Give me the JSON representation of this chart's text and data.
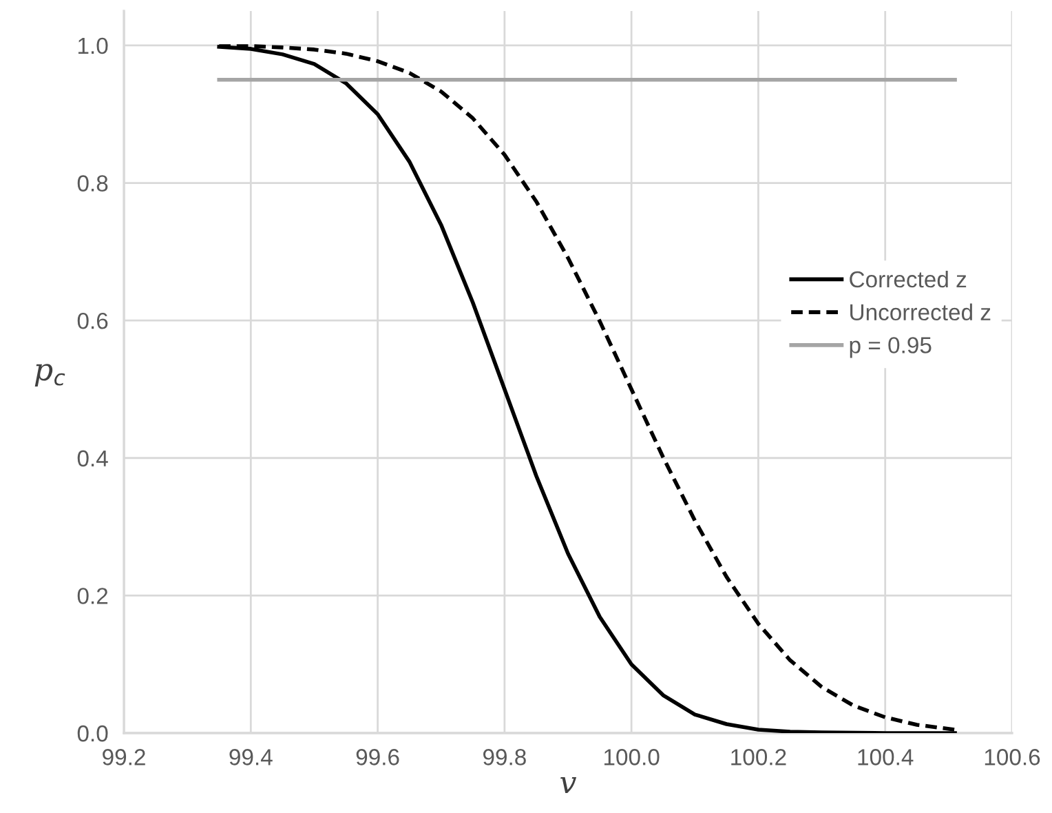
{
  "chart_data": {
    "type": "line",
    "xlabel": "v",
    "ylabel": "p$_{c}$",
    "xlim": [
      99.2,
      100.6
    ],
    "xticks": [
      {
        "value": 99.2,
        "label": "99.2"
      },
      {
        "value": 99.4,
        "label": "99.4"
      },
      {
        "value": 99.6,
        "label": "99.6"
      },
      {
        "value": 99.8,
        "label": "99.8"
      },
      {
        "value": 100.0,
        "label": "100.0"
      },
      {
        "value": 100.2,
        "label": "100.2"
      },
      {
        "value": 100.4,
        "label": "100.4"
      },
      {
        "value": 100.6,
        "label": "100.6"
      }
    ],
    "ylim": [
      0,
      1.05
    ],
    "yticks": [
      {
        "value": 0,
        "label": "0.0"
      },
      {
        "value": 0.2,
        "label": "0.2"
      },
      {
        "value": 0.4,
        "label": "0.4"
      },
      {
        "value": 0.6,
        "label": "0.6"
      },
      {
        "value": 0.8,
        "label": "0.8"
      },
      {
        "value": 1.0,
        "label": "1.0"
      }
    ],
    "grid": true,
    "legend": "right",
    "marker": "none",
    "series": [
      {
        "name": "Corrected z",
        "color": "#000000",
        "line_style": "solid",
        "x": [
          99.35,
          99.4,
          99.45,
          99.5,
          99.55,
          99.6,
          99.65,
          99.7,
          99.75,
          99.8,
          99.85,
          99.9,
          99.95,
          100.0,
          100.05,
          100.1,
          100.15,
          100.2,
          100.25,
          100.3,
          100.4,
          100.51
        ],
        "values": [
          0.998,
          0.995,
          0.987,
          0.973,
          0.945,
          0.9,
          0.831,
          0.739,
          0.626,
          0.5,
          0.374,
          0.261,
          0.169,
          0.1,
          0.055,
          0.027,
          0.013,
          0.005,
          0.002,
          0.001,
          0.0,
          0.0
        ]
      },
      {
        "name": "Uncorrected z",
        "color": "#000000",
        "line_style": "dashed",
        "x": [
          99.35,
          99.4,
          99.45,
          99.5,
          99.55,
          99.6,
          99.65,
          99.7,
          99.75,
          99.8,
          99.85,
          99.9,
          99.95,
          100.0,
          100.05,
          100.1,
          100.15,
          100.2,
          100.25,
          100.3,
          100.35,
          100.4,
          100.45,
          100.51
        ],
        "values": [
          0.999,
          0.999,
          0.997,
          0.994,
          0.988,
          0.977,
          0.96,
          0.933,
          0.894,
          0.841,
          0.773,
          0.691,
          0.599,
          0.5,
          0.401,
          0.309,
          0.227,
          0.159,
          0.106,
          0.067,
          0.04,
          0.023,
          0.012,
          0.005
        ]
      },
      {
        "name": "p = 0.95",
        "color": "#a5a5a5",
        "line_style": "solid",
        "x": [
          99.35,
          100.51
        ],
        "values": [
          0.95,
          0.95
        ]
      }
    ]
  }
}
